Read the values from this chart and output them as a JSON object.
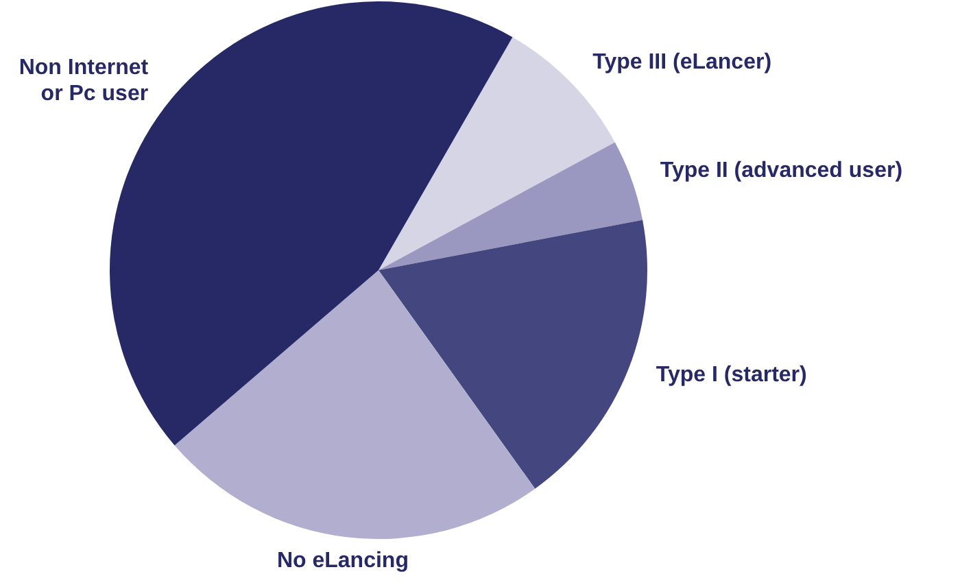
{
  "chart_data": {
    "type": "pie",
    "categories": [
      "Type III (eLancer)",
      "Type II (advanced user)",
      "Type I (starter)",
      "No eLancing",
      "Non Internet\nor Pc user"
    ],
    "values": [
      8.8,
      4.9,
      18.1,
      23.6,
      44.6
    ],
    "colors": [
      "#d6d5e6",
      "#9a98c0",
      "#43467f",
      "#b2aecf",
      "#262966"
    ]
  }
}
